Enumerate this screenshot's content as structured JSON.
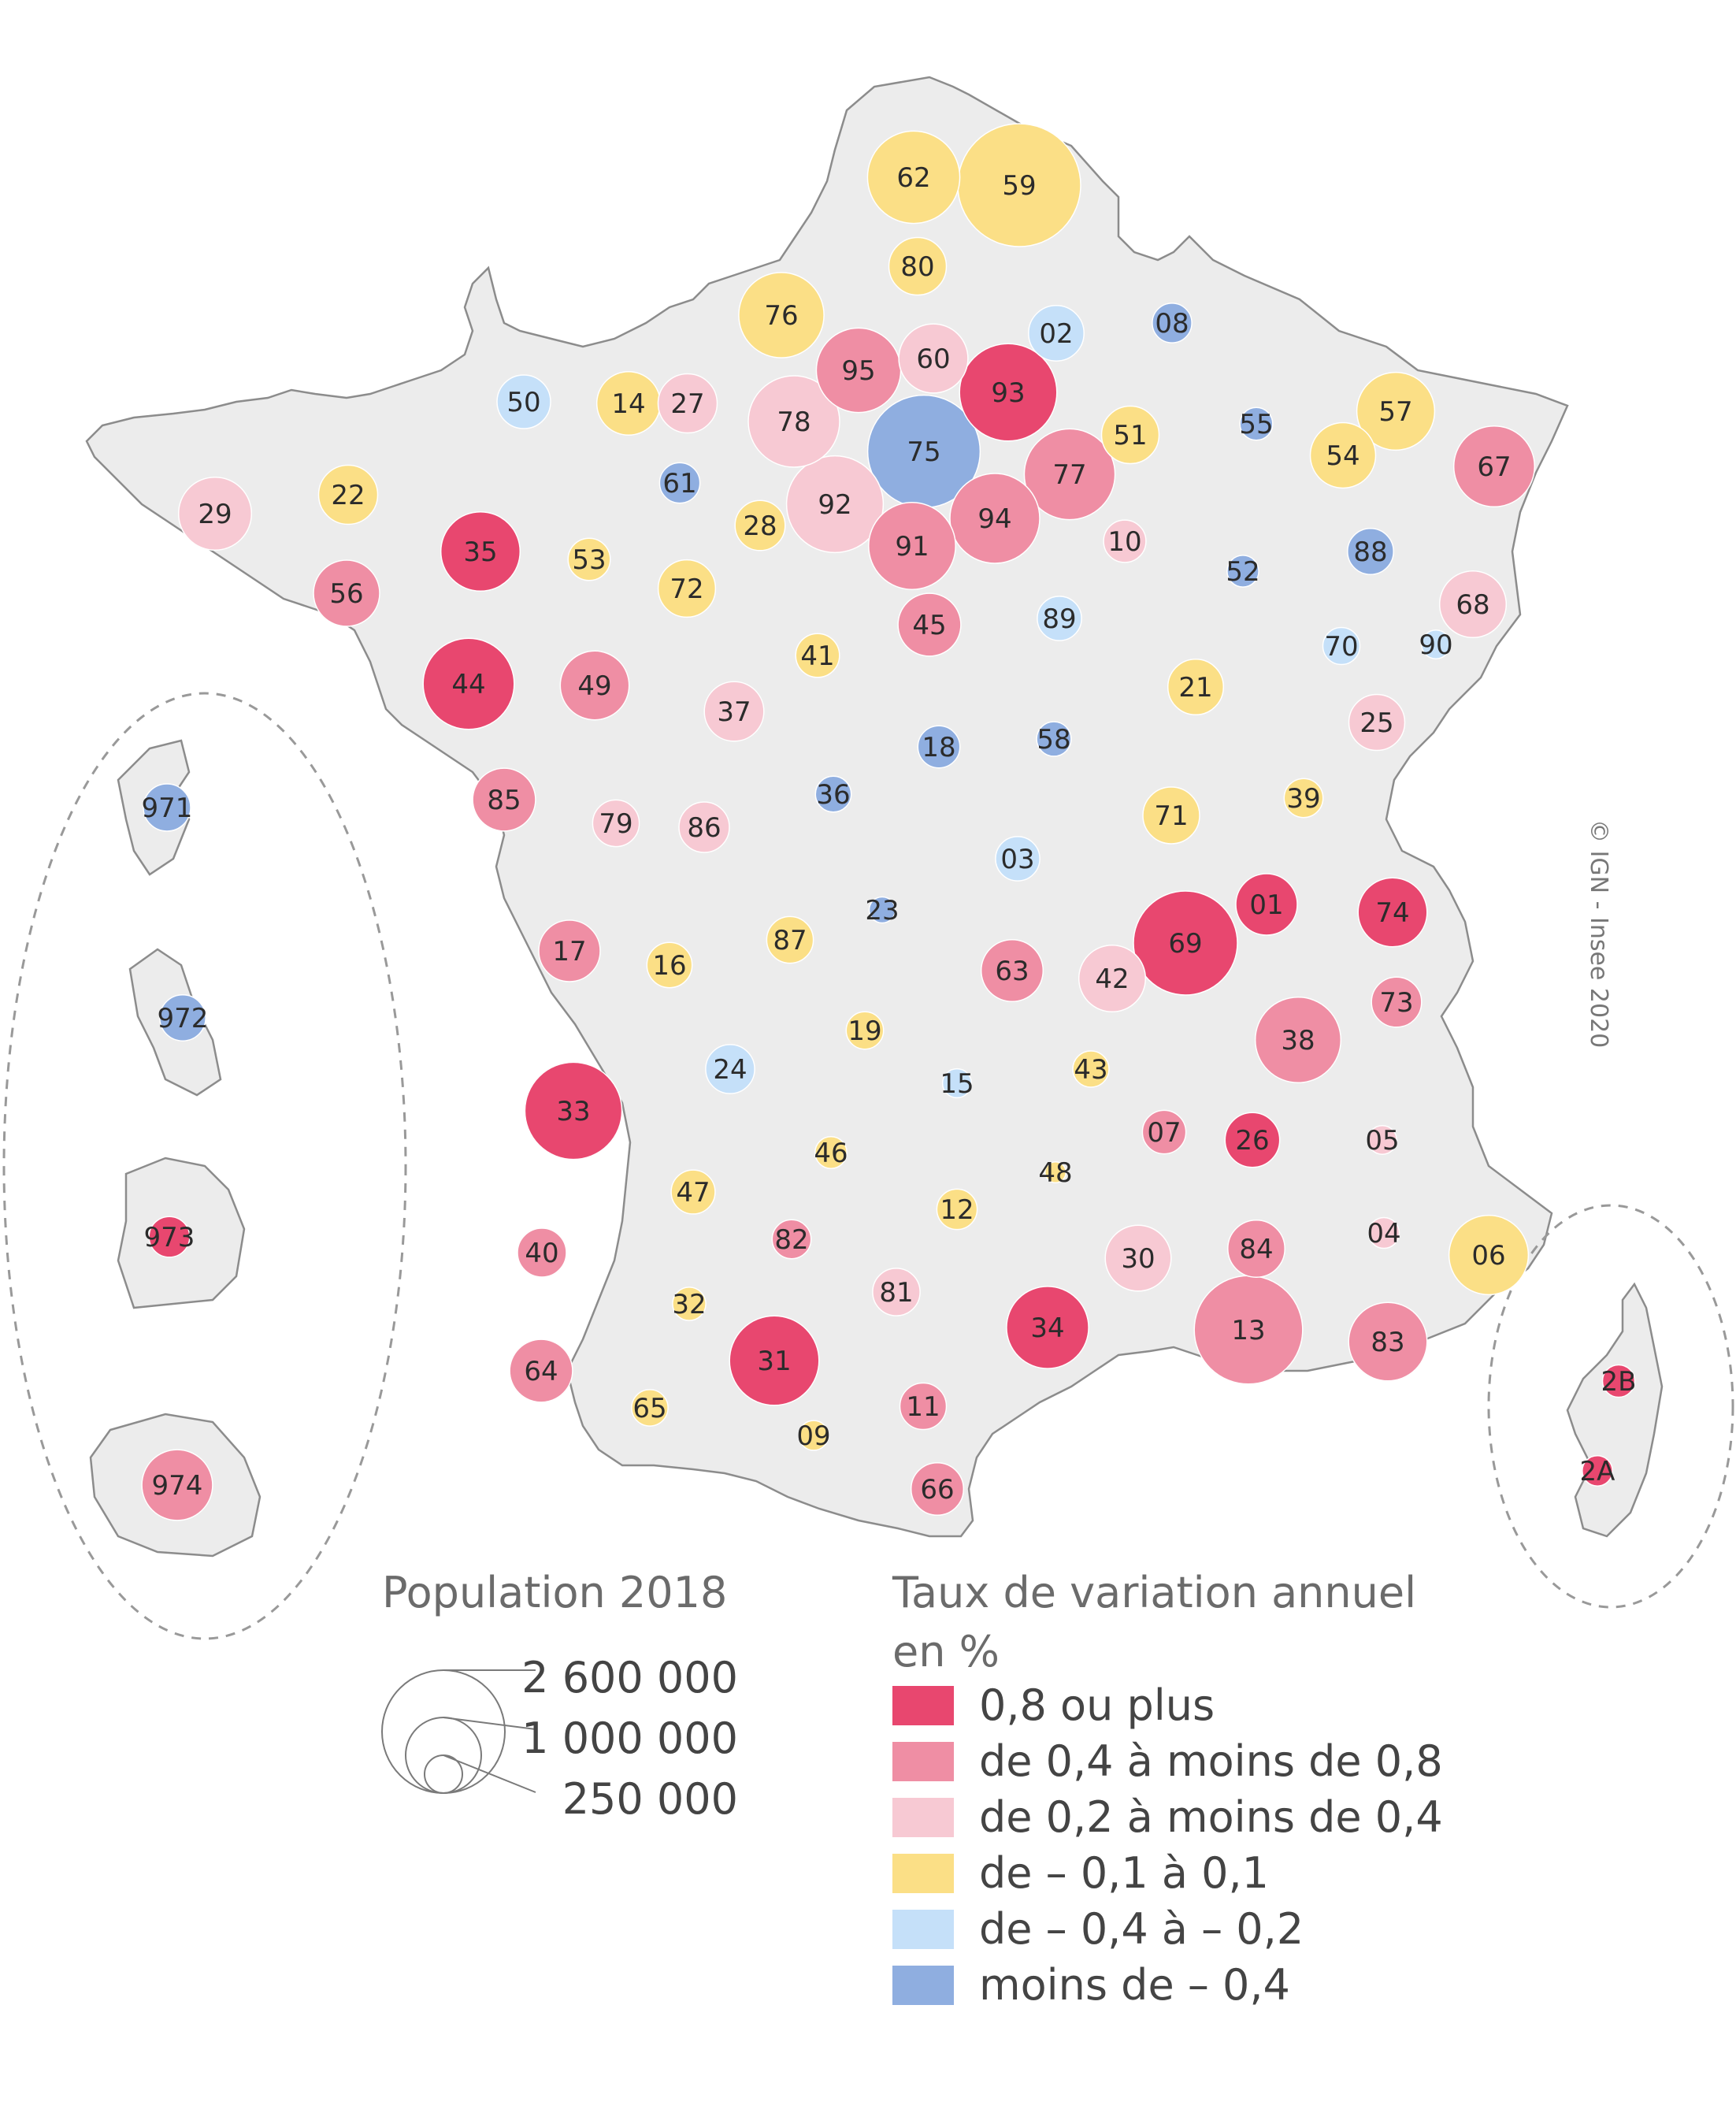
{
  "credit": "© IGN - Insee 2020",
  "legend_size": {
    "title": "Population 2018",
    "values": [
      "2 600 000",
      "1 000 000",
      "250 000"
    ]
  },
  "legend_color": {
    "title_line1": "Taux de variation annuel",
    "title_line2": "en %",
    "classes": [
      {
        "label": "0,8 ou plus",
        "color": "#e8476f"
      },
      {
        "label": "de 0,4 à moins de 0,8",
        "color": "#ef8ea4"
      },
      {
        "label": "de 0,2 à moins de 0,4",
        "color": "#f7c9d3"
      },
      {
        "label": "de – 0,1 à 0,1",
        "color": "#fbdf86"
      },
      {
        "label": "de – 0,4 à  – 0,2",
        "color": "#c5e0f9"
      },
      {
        "label": "moins de – 0,4",
        "color": "#8faee0"
      }
    ]
  },
  "departments": [
    {
      "code": "62",
      "cls": 3,
      "pop": 1470000
    },
    {
      "code": "59",
      "cls": 3,
      "pop": 2600000
    },
    {
      "code": "80",
      "cls": 3,
      "pop": 570000
    },
    {
      "code": "76",
      "cls": 3,
      "pop": 1250000
    },
    {
      "code": "02",
      "cls": 4,
      "pop": 530000
    },
    {
      "code": "08",
      "cls": 5,
      "pop": 270000
    },
    {
      "code": "95",
      "cls": 1,
      "pop": 1230000
    },
    {
      "code": "60",
      "cls": 2,
      "pop": 825000
    },
    {
      "code": "93",
      "cls": 0,
      "pop": 1630000
    },
    {
      "code": "50",
      "cls": 4,
      "pop": 495000
    },
    {
      "code": "14",
      "cls": 3,
      "pop": 695000
    },
    {
      "code": "27",
      "cls": 2,
      "pop": 600000
    },
    {
      "code": "78",
      "cls": 2,
      "pop": 1440000
    },
    {
      "code": "75",
      "cls": 5,
      "pop": 2180000
    },
    {
      "code": "51",
      "cls": 3,
      "pop": 570000
    },
    {
      "code": "55",
      "cls": 5,
      "pop": 185000
    },
    {
      "code": "57",
      "cls": 3,
      "pop": 1045000
    },
    {
      "code": "54",
      "cls": 3,
      "pop": 735000
    },
    {
      "code": "67",
      "cls": 1,
      "pop": 1125000
    },
    {
      "code": "22",
      "cls": 3,
      "pop": 600000
    },
    {
      "code": "61",
      "cls": 5,
      "pop": 280000
    },
    {
      "code": "29",
      "cls": 2,
      "pop": 915000
    },
    {
      "code": "77",
      "cls": 1,
      "pop": 1420000
    },
    {
      "code": "92",
      "cls": 2,
      "pop": 1610000
    },
    {
      "code": "94",
      "cls": 1,
      "pop": 1390000
    },
    {
      "code": "35",
      "cls": 0,
      "pop": 1080000
    },
    {
      "code": "53",
      "cls": 3,
      "pop": 307000
    },
    {
      "code": "28",
      "cls": 3,
      "pop": 432000
    },
    {
      "code": "91",
      "cls": 1,
      "pop": 1300000
    },
    {
      "code": "10",
      "cls": 2,
      "pop": 310000
    },
    {
      "code": "52",
      "cls": 5,
      "pop": 173000
    },
    {
      "code": "88",
      "cls": 5,
      "pop": 365000
    },
    {
      "code": "56",
      "cls": 1,
      "pop": 755000
    },
    {
      "code": "72",
      "cls": 3,
      "pop": 566000
    },
    {
      "code": "45",
      "cls": 1,
      "pop": 680000
    },
    {
      "code": "89",
      "cls": 4,
      "pop": 338000
    },
    {
      "code": "68",
      "cls": 2,
      "pop": 765000
    },
    {
      "code": "44",
      "cls": 0,
      "pop": 1430000
    },
    {
      "code": "49",
      "cls": 1,
      "pop": 815000
    },
    {
      "code": "41",
      "cls": 3,
      "pop": 331000
    },
    {
      "code": "37",
      "cls": 2,
      "pop": 610000
    },
    {
      "code": "70",
      "cls": 4,
      "pop": 236000
    },
    {
      "code": "90",
      "cls": 4,
      "pop": 142000
    },
    {
      "code": "21",
      "cls": 3,
      "pop": 533000
    },
    {
      "code": "25",
      "cls": 2,
      "pop": 540000
    },
    {
      "code": "18",
      "cls": 5,
      "pop": 304000
    },
    {
      "code": "58",
      "cls": 5,
      "pop": 205000
    },
    {
      "code": "85",
      "cls": 1,
      "pop": 680000
    },
    {
      "code": "79",
      "cls": 2,
      "pop": 375000
    },
    {
      "code": "86",
      "cls": 2,
      "pop": 437000
    },
    {
      "code": "36",
      "cls": 5,
      "pop": 220000
    },
    {
      "code": "71",
      "cls": 3,
      "pop": 553000
    },
    {
      "code": "39",
      "cls": 3,
      "pop": 260000
    },
    {
      "code": "03",
      "cls": 4,
      "pop": 337000
    },
    {
      "code": "01",
      "cls": 0,
      "pop": 650000
    },
    {
      "code": "74",
      "cls": 0,
      "pop": 820000
    },
    {
      "code": "69",
      "cls": 0,
      "pop": 1860000
    },
    {
      "code": "23",
      "cls": 5,
      "pop": 117000
    },
    {
      "code": "87",
      "cls": 3,
      "pop": 374000
    },
    {
      "code": "17",
      "cls": 1,
      "pop": 650000
    },
    {
      "code": "16",
      "cls": 3,
      "pop": 352000
    },
    {
      "code": "63",
      "cls": 1,
      "pop": 660000
    },
    {
      "code": "42",
      "cls": 2,
      "pop": 765000
    },
    {
      "code": "73",
      "cls": 1,
      "pop": 432000
    },
    {
      "code": "38",
      "cls": 1,
      "pop": 1260000
    },
    {
      "code": "19",
      "cls": 3,
      "pop": 241000
    },
    {
      "code": "24",
      "cls": 4,
      "pop": 413000
    },
    {
      "code": "15",
      "cls": 4,
      "pop": 144000
    },
    {
      "code": "43",
      "cls": 3,
      "pop": 227000
    },
    {
      "code": "33",
      "cls": 0,
      "pop": 1620000
    },
    {
      "code": "07",
      "cls": 1,
      "pop": 326000
    },
    {
      "code": "26",
      "cls": 0,
      "pop": 515000
    },
    {
      "code": "05",
      "cls": 2,
      "pop": 141000
    },
    {
      "code": "46",
      "cls": 3,
      "pop": 174000
    },
    {
      "code": "48",
      "cls": 3,
      "pop": 76000
    },
    {
      "code": "47",
      "cls": 3,
      "pop": 332000
    },
    {
      "code": "12",
      "cls": 3,
      "pop": 279000
    },
    {
      "code": "04",
      "cls": 2,
      "pop": 163000
    },
    {
      "code": "06",
      "cls": 3,
      "pop": 1085000
    },
    {
      "code": "40",
      "cls": 1,
      "pop": 410000
    },
    {
      "code": "82",
      "cls": 1,
      "pop": 260000
    },
    {
      "code": "30",
      "cls": 2,
      "pop": 745000
    },
    {
      "code": "84",
      "cls": 1,
      "pop": 560000
    },
    {
      "code": "32",
      "cls": 3,
      "pop": 191000
    },
    {
      "code": "81",
      "cls": 2,
      "pop": 387000
    },
    {
      "code": "34",
      "cls": 0,
      "pop": 1160000
    },
    {
      "code": "13",
      "cls": 1,
      "pop": 2020000
    },
    {
      "code": "83",
      "cls": 1,
      "pop": 1060000
    },
    {
      "code": "31",
      "cls": 0,
      "pop": 1380000
    },
    {
      "code": "64",
      "cls": 1,
      "pop": 680000
    },
    {
      "code": "65",
      "cls": 3,
      "pop": 229000
    },
    {
      "code": "09",
      "cls": 3,
      "pop": 153000
    },
    {
      "code": "11",
      "cls": 1,
      "pop": 371000
    },
    {
      "code": "66",
      "cls": 1,
      "pop": 475000
    },
    {
      "code": "2B",
      "cls": 0,
      "pop": 180000
    },
    {
      "code": "2A",
      "cls": 0,
      "pop": 158000
    },
    {
      "code": "971",
      "cls": 5,
      "pop": 385000
    },
    {
      "code": "972",
      "cls": 5,
      "pop": 365000
    },
    {
      "code": "973",
      "cls": 0,
      "pop": 285000
    },
    {
      "code": "974",
      "cls": 1,
      "pop": 860000
    }
  ]
}
